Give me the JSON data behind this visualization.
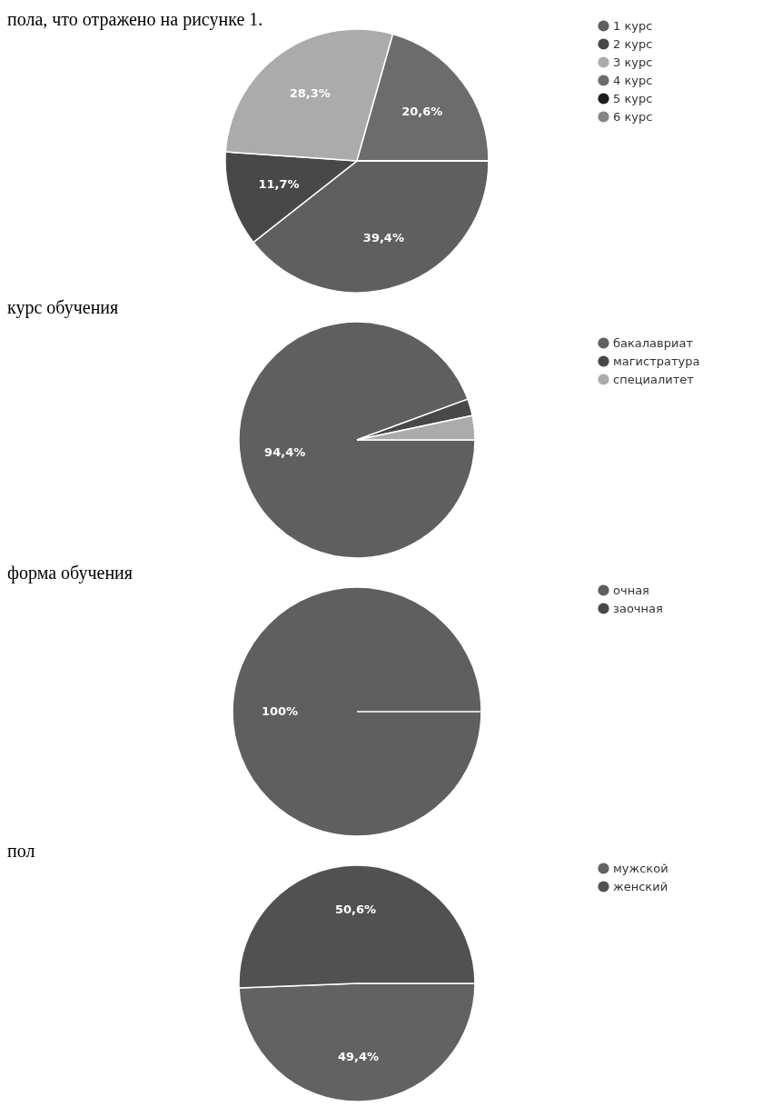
{
  "chart_data": [
    {
      "type": "pie",
      "annotations": [
        "пола, что отражено на рисунке 1."
      ],
      "categories": [
        "1 курс",
        "2 курс",
        "3 курс",
        "4 курс",
        "5 курс",
        "6 курс"
      ],
      "values": [
        39.4,
        11.7,
        28.3,
        20.6,
        0,
        0
      ],
      "colors": [
        "#5f5f5f",
        "#484848",
        "#ababab",
        "#6c6c6c",
        "#1e1e1e",
        "#858585"
      ],
      "value_labels": [
        "39,4%",
        "11,7%",
        "28,3%",
        "20,6%",
        null,
        null
      ],
      "legend": "top right"
    },
    {
      "type": "pie",
      "title": "курс обучения",
      "categories": [
        "бакалавриат",
        "магистратура",
        "специалитет"
      ],
      "values": [
        94.4,
        2.3,
        3.3
      ],
      "colors": [
        "#5f5f5f",
        "#484848",
        "#ababab"
      ],
      "value_labels": [
        "94,4%",
        null,
        null
      ],
      "legend": "top right"
    },
    {
      "type": "pie",
      "title": "форма обучения",
      "categories": [
        "очная",
        "заочная"
      ],
      "values": [
        100,
        0
      ],
      "colors": [
        "#5f5f5f",
        "#484848"
      ],
      "value_labels": [
        "100%",
        null
      ],
      "legend": "top right"
    },
    {
      "type": "pie",
      "title": "пол",
      "categories": [
        "мужской",
        "женский"
      ],
      "values": [
        49.4,
        50.6
      ],
      "colors": [
        "#626262",
        "#515151"
      ],
      "value_labels": [
        "49,4%",
        "50,6%"
      ],
      "legend": "top right"
    }
  ]
}
